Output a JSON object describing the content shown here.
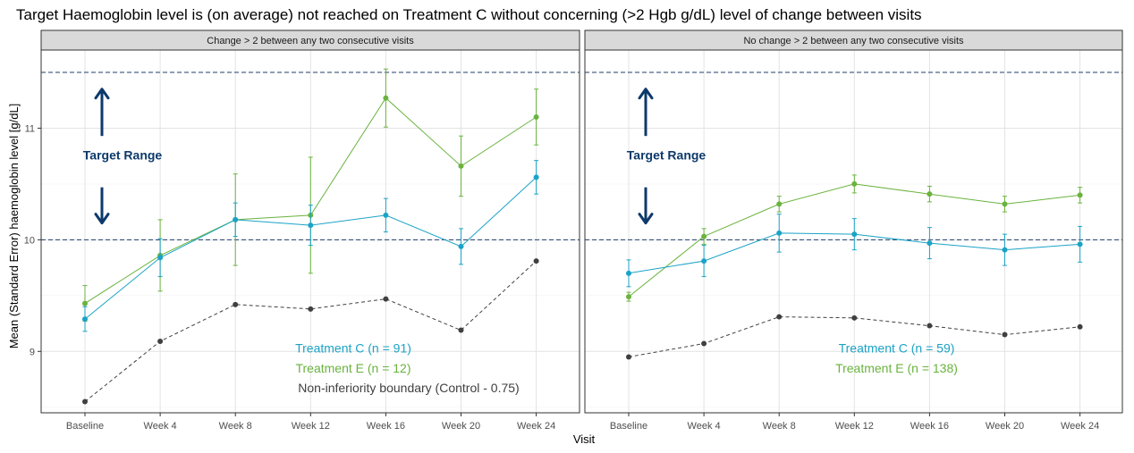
{
  "chart_data": {
    "type": "line",
    "title": "Target Haemoglobin level is (on average) not reached on Treatment C without concerning (>2 Hgb g/dL) level of change between visits",
    "xlabel": "Visit",
    "ylabel": "Mean (Standard Error) haemoglobin level [g/dL]",
    "categories": [
      "Baseline",
      "Week 4",
      "Week 8",
      "Week 12",
      "Week 16",
      "Week 20",
      "Week 24"
    ],
    "ylim": [
      8.45,
      11.7
    ],
    "yticks": [
      9,
      10,
      11
    ],
    "grid": true,
    "reference_lines": [
      10,
      11.5
    ],
    "target_label": "Target Range",
    "colors": {
      "treatment_c": "#1ba3c6",
      "treatment_e": "#6ab33e",
      "boundary": "#404040",
      "reference": "#1f3d6b",
      "target": "#0d3a6b"
    },
    "panels": [
      {
        "strip": "Change > 2 between any two consecutive visits",
        "labels": {
          "c": "Treatment C (n = 91)",
          "e": "Treatment E (n = 12)",
          "boundary": "Non-inferiority boundary (Control - 0.75)"
        },
        "series": [
          {
            "key": "c",
            "values": [
              9.29,
              9.84,
              10.18,
              10.13,
              10.22,
              9.94,
              10.56
            ],
            "se": [
              0.11,
              0.17,
              0.15,
              0.18,
              0.15,
              0.16,
              0.15
            ]
          },
          {
            "key": "e",
            "values": [
              9.43,
              9.86,
              10.18,
              10.22,
              11.27,
              10.66,
              11.1
            ],
            "se": [
              0.16,
              0.32,
              0.41,
              0.52,
              0.26,
              0.27,
              0.25
            ]
          },
          {
            "key": "boundary",
            "values": [
              8.55,
              9.09,
              9.42,
              9.38,
              9.47,
              9.19,
              9.81
            ],
            "se": null
          }
        ]
      },
      {
        "strip": "No change > 2 between any two consecutive visits",
        "labels": {
          "c": "Treatment C (n = 59)",
          "e": "Treatment E (n = 138)",
          "boundary": ""
        },
        "series": [
          {
            "key": "c",
            "values": [
              9.7,
              9.81,
              10.06,
              10.05,
              9.97,
              9.91,
              9.96
            ],
            "se": [
              0.12,
              0.14,
              0.17,
              0.14,
              0.14,
              0.14,
              0.16
            ]
          },
          {
            "key": "e",
            "values": [
              9.49,
              10.03,
              10.32,
              10.5,
              10.41,
              10.32,
              10.4
            ],
            "se": [
              0.04,
              0.07,
              0.07,
              0.08,
              0.07,
              0.07,
              0.07
            ]
          },
          {
            "key": "boundary",
            "values": [
              8.95,
              9.07,
              9.31,
              9.3,
              9.23,
              9.15,
              9.22
            ],
            "se": null
          }
        ]
      }
    ]
  }
}
